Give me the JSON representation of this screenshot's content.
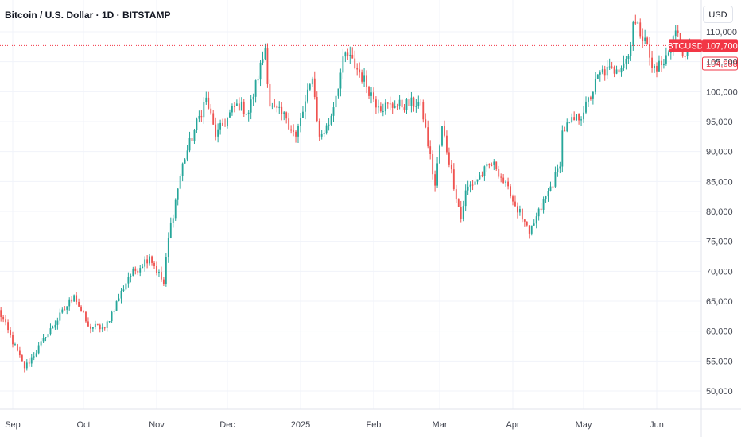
{
  "header": {
    "title": "Bitcoin / U.S. Dollar · 1D · BITSTAMP",
    "currency": "USD"
  },
  "price_labels": {
    "symbol": "BTCUSD",
    "last_price": "107,700",
    "secondary_price": "104,688"
  },
  "colors": {
    "up": "#26a69a",
    "down": "#ef5350",
    "last_line": "#f23645",
    "grid": "#f0f3fa"
  },
  "chart_data": {
    "type": "candlestick",
    "title": "Bitcoin / U.S. Dollar · 1D · BITSTAMP",
    "ylim": [
      47000,
      113000
    ],
    "y_ticks": [
      50000,
      55000,
      60000,
      65000,
      70000,
      75000,
      80000,
      85000,
      90000,
      95000,
      100000,
      105000,
      110000
    ],
    "y_tick_labels": [
      "50,000",
      "55,000",
      "60,000",
      "65,000",
      "70,000",
      "75,000",
      "80,000",
      "85,000",
      "90,000",
      "95,000",
      "100,000",
      "105,000",
      "110,000"
    ],
    "x_labels": [
      {
        "date": "2024-09-01",
        "label": "Sep"
      },
      {
        "date": "2024-10-01",
        "label": "Oct"
      },
      {
        "date": "2024-11-01",
        "label": "Nov"
      },
      {
        "date": "2024-12-01",
        "label": "Dec"
      },
      {
        "date": "2025-01-01",
        "label": "2025"
      },
      {
        "date": "2025-02-01",
        "label": "Feb"
      },
      {
        "date": "2025-03-01",
        "label": "Mar"
      },
      {
        "date": "2025-04-01",
        "label": "Apr"
      },
      {
        "date": "2025-05-01",
        "label": "May"
      },
      {
        "date": "2025-06-01",
        "label": "Jun"
      }
    ],
    "last_price": 107700,
    "secondary_level": 104688,
    "key_closes": [
      [
        "2024-08-26",
        63500
      ],
      [
        "2024-09-06",
        53800
      ],
      [
        "2024-09-15",
        59000
      ],
      [
        "2024-09-27",
        66000
      ],
      [
        "2024-10-03",
        60800
      ],
      [
        "2024-10-10",
        60500
      ],
      [
        "2024-10-20",
        69000
      ],
      [
        "2024-10-29",
        72500
      ],
      [
        "2024-11-04",
        67900
      ],
      [
        "2024-11-06",
        75600
      ],
      [
        "2024-11-12",
        88000
      ],
      [
        "2024-11-22",
        99000
      ],
      [
        "2024-11-26",
        92500
      ],
      [
        "2024-12-05",
        98000
      ],
      [
        "2024-12-10",
        96500
      ],
      [
        "2024-12-17",
        107200
      ],
      [
        "2024-12-19",
        97500
      ],
      [
        "2024-12-26",
        95500
      ],
      [
        "2024-12-30",
        92500
      ],
      [
        "2025-01-06",
        102200
      ],
      [
        "2025-01-09",
        92500
      ],
      [
        "2025-01-13",
        94500
      ],
      [
        "2025-01-20",
        106500
      ],
      [
        "2025-01-26",
        103200
      ],
      [
        "2025-02-03",
        97500
      ],
      [
        "2025-02-10",
        97600
      ],
      [
        "2025-02-21",
        98200
      ],
      [
        "2025-02-27",
        84300
      ],
      [
        "2025-03-02",
        94200
      ],
      [
        "2025-03-10",
        78800
      ],
      [
        "2025-03-12",
        83500
      ],
      [
        "2025-03-24",
        88300
      ],
      [
        "2025-03-31",
        82500
      ],
      [
        "2025-04-06",
        78300
      ],
      [
        "2025-04-08",
        76300
      ],
      [
        "2025-04-21",
        87500
      ],
      [
        "2025-04-22",
        93500
      ],
      [
        "2025-05-01",
        96500
      ],
      [
        "2025-05-08",
        103200
      ],
      [
        "2025-05-15",
        103700
      ],
      [
        "2025-05-20",
        106000
      ],
      [
        "2025-05-22",
        111600
      ],
      [
        "2025-05-27",
        109000
      ],
      [
        "2025-05-30",
        104000
      ],
      [
        "2025-06-04",
        104700
      ],
      [
        "2025-06-09",
        110200
      ],
      [
        "2025-06-13",
        105900
      ],
      [
        "2025-06-16",
        107700
      ]
    ]
  }
}
